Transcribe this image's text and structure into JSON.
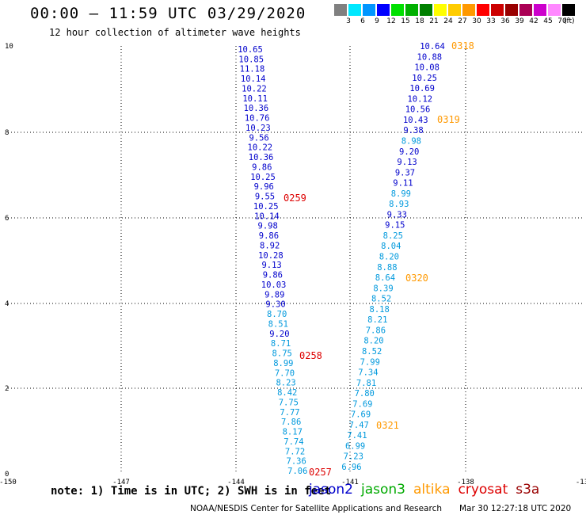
{
  "header": {
    "title": "00:00 – 11:59 UTC 03/29/2020",
    "subtitle": "12 hour collection of altimeter wave heights"
  },
  "color_scale": {
    "unit": "(ft)",
    "entries": [
      {
        "label": "3",
        "color": "#808080"
      },
      {
        "label": "6",
        "color": "#00e8ff"
      },
      {
        "label": "9",
        "color": "#0096ff"
      },
      {
        "label": "12",
        "color": "#0000ff"
      },
      {
        "label": "15",
        "color": "#00e000"
      },
      {
        "label": "18",
        "color": "#00b000"
      },
      {
        "label": "21",
        "color": "#008000"
      },
      {
        "label": "24",
        "color": "#ffff00"
      },
      {
        "label": "27",
        "color": "#ffcc00"
      },
      {
        "label": "30",
        "color": "#ff9900"
      },
      {
        "label": "33",
        "color": "#ff0000"
      },
      {
        "label": "36",
        "color": "#cc0000"
      },
      {
        "label": "39",
        "color": "#990000"
      },
      {
        "label": "42",
        "color": "#aa0055"
      },
      {
        "label": "45",
        "color": "#cc00cc"
      },
      {
        "label": "70",
        "color": "#ff88ff"
      },
      {
        "label": "",
        "color": "#000000"
      }
    ]
  },
  "map": {
    "x_ticks": [
      "-150",
      "-147",
      "-144",
      "-141",
      "-138",
      "-13"
    ],
    "y_ticks": [
      "0",
      "2",
      "4",
      "6",
      "8",
      "10"
    ],
    "track_left": {
      "color_dark": "#0000cc",
      "color_light": "#0099dd",
      "values": [
        "10.65",
        "10.85",
        "11.18",
        "10.14",
        "10.22",
        "10.11",
        "10.36",
        "10.76",
        "10.23",
        "9.56",
        "10.22",
        "10.36",
        "9.86",
        "10.25",
        "9.96",
        "9.55",
        "10.25",
        "10.14",
        "9.98",
        "9.86",
        "8.92",
        "10.28",
        "9.13",
        "9.86",
        "10.03",
        "9.89",
        "9.30",
        "8.70",
        "8.51",
        "9.20",
        "8.71",
        "8.75",
        "8.99",
        "7.70",
        "8.23",
        "8.42",
        "7.75",
        "7.77",
        "7.86",
        "8.17",
        "7.74",
        "7.72",
        "7.36",
        "7.06"
      ],
      "times": [
        {
          "label": "0259",
          "color": "#dd0000"
        },
        {
          "label": "0258",
          "color": "#dd0000"
        },
        {
          "label": "0257",
          "color": "#dd0000"
        }
      ]
    },
    "track_right": {
      "values": [
        "10.64",
        "10.88",
        "10.08",
        "10.25",
        "10.69",
        "10.12",
        "10.56",
        "10.43",
        "9.38",
        "8.98",
        "9.20",
        "9.13",
        "9.37",
        "9.11",
        "8.99",
        "8.93",
        "9.33",
        "9.15",
        "8.25",
        "8.04",
        "8.20",
        "8.88",
        "8.64",
        "8.39",
        "8.52",
        "8.18",
        "8.21",
        "7.86",
        "8.20",
        "8.52",
        "7.99",
        "7.34",
        "7.81",
        "7.80",
        "7.69",
        "7.69",
        "7.47",
        "7.41",
        "6.99",
        "7.23",
        "6.96"
      ],
      "times": [
        {
          "label": "0318",
          "color": "#ff9900"
        },
        {
          "label": "0319",
          "color": "#ff9900"
        },
        {
          "label": "0320",
          "color": "#ff9900"
        },
        {
          "label": "0321",
          "color": "#ff9900"
        }
      ]
    }
  },
  "note": "note: 1) Time is in UTC; 2) SWH is in feet",
  "legend": [
    {
      "label": "jason2",
      "color": "#0000cc"
    },
    {
      "label": "jason3",
      "color": "#00aa00"
    },
    {
      "label": "altika",
      "color": "#ff9900"
    },
    {
      "label": "cryosat",
      "color": "#dd0000"
    },
    {
      "label": "s3a",
      "color": "#990000"
    }
  ],
  "footer": {
    "credit": "NOAA/NESDIS Center for Satellite Applications and Research",
    "timestamp": "Mar 30 12:27:18 UTC 2020"
  }
}
